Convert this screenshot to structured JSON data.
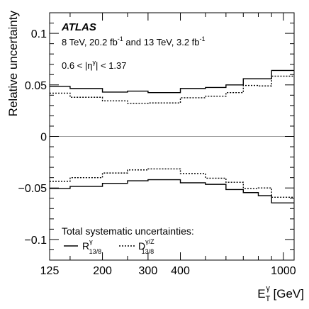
{
  "chart_data": {
    "type": "line",
    "title": "",
    "xlabel": {
      "main": "E",
      "sub": "T",
      "sup": "γ",
      "unit": " [GeV]"
    },
    "ylabel": "Relative uncertainty",
    "x_scale": "log",
    "xlim": [
      125,
      1100
    ],
    "ylim": [
      -0.12,
      0.12
    ],
    "x_tick_labels": [
      {
        "value": 125,
        "label": "125"
      },
      {
        "value": 200,
        "label": "200"
      },
      {
        "value": 300,
        "label": "300"
      },
      {
        "value": 400,
        "label": "400"
      },
      {
        "value": 1000,
        "label": "1000"
      }
    ],
    "x_minor_ticks": [
      150,
      250,
      500,
      600,
      700,
      800,
      900
    ],
    "y_tick_labels": [
      {
        "value": 0.1,
        "label": "0.1"
      },
      {
        "value": 0.05,
        "label": "0.05"
      },
      {
        "value": 0,
        "label": "0"
      },
      {
        "value": -0.05,
        "label": "−0.05"
      },
      {
        "value": -0.1,
        "label": "−0.1"
      }
    ],
    "y_minor_step": 0.01,
    "bin_edges": [
      125,
      150,
      200,
      250,
      300,
      400,
      500,
      600,
      700,
      800,
      900,
      1100
    ],
    "series": [
      {
        "name": {
          "main": "R",
          "sub": "13/8",
          "sup": "γ"
        },
        "style": "solid",
        "up": [
          0.0485,
          0.0465,
          0.043,
          0.044,
          0.0425,
          0.0465,
          0.0475,
          0.05,
          0.056,
          0.056,
          0.064
        ],
        "down": [
          -0.0505,
          -0.0485,
          -0.0455,
          -0.043,
          -0.042,
          -0.045,
          -0.0465,
          -0.0515,
          -0.0545,
          -0.0575,
          -0.0645
        ]
      },
      {
        "name": {
          "main": "D",
          "sub": "13/8",
          "sup": "γ/Z"
        },
        "style": "dashed",
        "up": [
          0.042,
          0.038,
          0.0345,
          0.032,
          0.0325,
          0.0375,
          0.039,
          0.0425,
          0.0495,
          0.049,
          0.0585
        ],
        "down": [
          -0.0435,
          -0.04,
          -0.0355,
          -0.0325,
          -0.0315,
          -0.036,
          -0.0405,
          -0.0445,
          -0.0505,
          -0.05,
          -0.059
        ]
      }
    ],
    "annotations": {
      "experiment": "ATLAS",
      "lumi_line": {
        "part1": "8 TeV, 20.2 fb",
        "sup1": "-1",
        "part2": " and 13 TeV, 3.2 fb",
        "sup2": "-1"
      },
      "eta_range": {
        "pre": "0.6 < |η",
        "sup": "γ",
        "post": "| < 1.37"
      }
    },
    "legend": {
      "title": "Total systematic uncertainties:",
      "placement": "bottom-left"
    },
    "grid": false,
    "zero_line": true,
    "colors": {
      "axis": "#000000",
      "zero_line": "#9a9a9a",
      "lines": "#000000",
      "background": "#ffffff"
    }
  }
}
